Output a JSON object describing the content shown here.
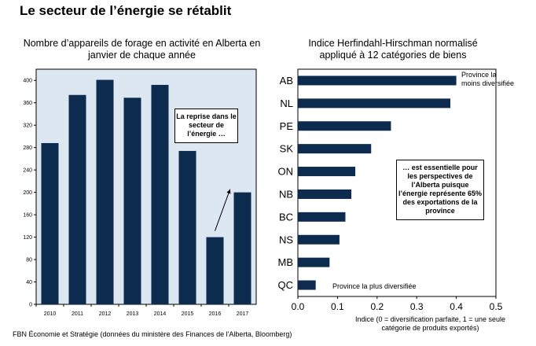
{
  "page_title": "Le secteur de l’énergie se rétablit",
  "source": "FBN Économie et Stratégie (données du ministère des Finances de l'Alberta, Bloomberg)",
  "colors": {
    "bar": "#0d2b4e",
    "plot_bg": "#dde7f2",
    "frame": "#000000"
  },
  "chart_data": [
    {
      "type": "bar",
      "title": "Nombre d’appareils de forage en activité en Alberta en janvier de chaque année",
      "categories": [
        "2010",
        "2011",
        "2012",
        "2013",
        "2014",
        "2015",
        "2016",
        "2017"
      ],
      "values": [
        288,
        374,
        401,
        369,
        392,
        274,
        120,
        200
      ],
      "ylim": [
        0,
        420
      ],
      "yticks": [
        "0",
        "40",
        "80",
        "120",
        "160",
        "200",
        "240",
        "280",
        "320",
        "360",
        "400"
      ],
      "annotations": [
        "La reprise dans le secteur de l’énergie …"
      ]
    },
    {
      "type": "bar",
      "orientation": "horizontal",
      "title": "Indice Herfindahl-Hirschman normalisé appliqué à 12 catégories de biens",
      "categories": [
        "AB",
        "NL",
        "PE",
        "SK",
        "ON",
        "NB",
        "BC",
        "NS",
        "MB",
        "QC"
      ],
      "values": [
        0.4,
        0.385,
        0.235,
        0.185,
        0.145,
        0.135,
        0.12,
        0.105,
        0.08,
        0.045
      ],
      "xlim": [
        0,
        0.5
      ],
      "xticks": [
        "0.0",
        "0.1",
        "0.2",
        "0.3",
        "0.4",
        "0.5"
      ],
      "xlabel": "Indice (0 = diversification parfaite, 1 = une seule catégorie de produits exportés)",
      "annotations": [
        "Province la moins diversifiée",
        "Province la plus diversifiée",
        "… est essentielle pour les perspectives de l’Alberta puisque l’énergie représente 65% des exportations de la province"
      ]
    }
  ]
}
